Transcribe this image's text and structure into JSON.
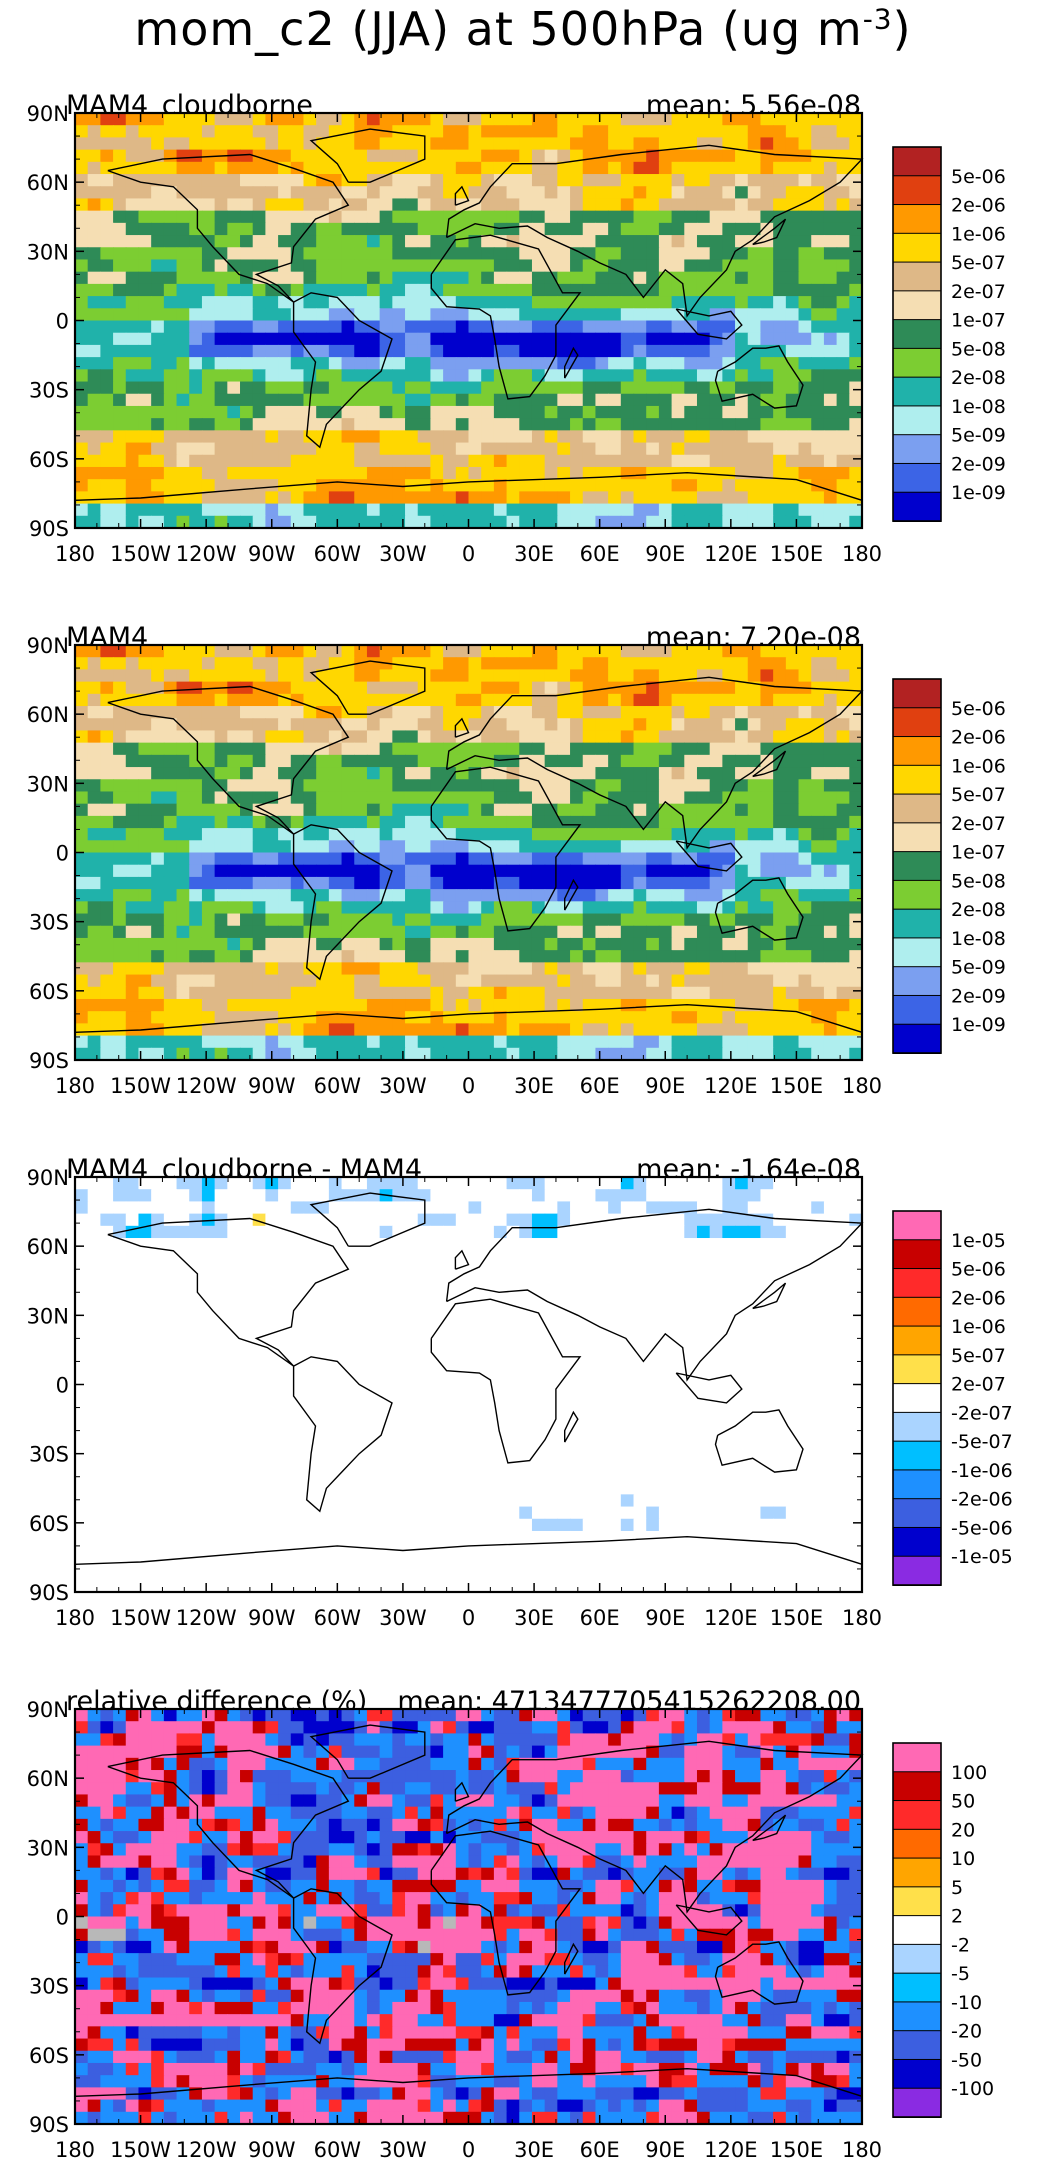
{
  "figure": {
    "title": "mom_c2 (JJA) at 500hPa (ug m",
    "title_exponent": "-3",
    "title_close": ")"
  },
  "chart_data": [
    {
      "type": "heatmap",
      "title": "MAM4_cloudborne",
      "mean_label": "mean: 5.56e-08",
      "mean": 5.56e-08,
      "xlim": [
        -180,
        180
      ],
      "ylim": [
        -90,
        90
      ],
      "x_ticks": [
        "180",
        "150W",
        "120W",
        "90W",
        "60W",
        "30W",
        "0",
        "30E",
        "60E",
        "90E",
        "120E",
        "150E",
        "180"
      ],
      "y_ticks": [
        "90N",
        "60N",
        "30N",
        "0",
        "30S",
        "60S",
        "90S"
      ],
      "colorbar": {
        "labels": [
          "5e-06",
          "2e-06",
          "1e-06",
          "5e-07",
          "2e-07",
          "1e-07",
          "5e-08",
          "2e-08",
          "1e-08",
          "5e-09",
          "2e-09",
          "1e-09"
        ],
        "colors": [
          "#b22222",
          "#e04010",
          "#ff9900",
          "#ffd700",
          "#deb887",
          "#f5deb3",
          "#2e8b57",
          "#7ccd32",
          "#20b2aa",
          "#afeeee",
          "#7b9ff0",
          "#3c64e6",
          "#0000cd"
        ]
      }
    },
    {
      "type": "heatmap",
      "title": "MAM4",
      "mean_label": "mean: 7.20e-08",
      "mean": 7.2e-08,
      "xlim": [
        -180,
        180
      ],
      "ylim": [
        -90,
        90
      ],
      "x_ticks": [
        "180",
        "150W",
        "120W",
        "90W",
        "60W",
        "30W",
        "0",
        "30E",
        "60E",
        "90E",
        "120E",
        "150E",
        "180"
      ],
      "y_ticks": [
        "90N",
        "60N",
        "30N",
        "0",
        "30S",
        "60S",
        "90S"
      ],
      "colorbar": {
        "labels": [
          "5e-06",
          "2e-06",
          "1e-06",
          "5e-07",
          "2e-07",
          "1e-07",
          "5e-08",
          "2e-08",
          "1e-08",
          "5e-09",
          "2e-09",
          "1e-09"
        ],
        "colors": [
          "#b22222",
          "#e04010",
          "#ff9900",
          "#ffd700",
          "#deb887",
          "#f5deb3",
          "#2e8b57",
          "#7ccd32",
          "#20b2aa",
          "#afeeee",
          "#7b9ff0",
          "#3c64e6",
          "#0000cd"
        ]
      }
    },
    {
      "type": "heatmap",
      "title": "MAM4_cloudborne - MAM4",
      "mean_label": "mean: -1.64e-08",
      "mean": -1.64e-08,
      "xlim": [
        -180,
        180
      ],
      "ylim": [
        -90,
        90
      ],
      "x_ticks": [
        "180",
        "150W",
        "120W",
        "90W",
        "60W",
        "30W",
        "0",
        "30E",
        "60E",
        "90E",
        "120E",
        "150E",
        "180"
      ],
      "y_ticks": [
        "90N",
        "60N",
        "30N",
        "0",
        "30S",
        "60S",
        "90S"
      ],
      "colorbar": {
        "labels": [
          "1e-05",
          "5e-06",
          "2e-06",
          "1e-06",
          "5e-07",
          "2e-07",
          "-2e-07",
          "-5e-07",
          "-1e-06",
          "-2e-06",
          "-5e-06",
          "-1e-05"
        ],
        "colors": [
          "#ff69b4",
          "#c80000",
          "#ff2a2a",
          "#ff6a00",
          "#ffa500",
          "#ffe04a",
          "#ffffff",
          "#aad4ff",
          "#00bfff",
          "#1e90ff",
          "#3c5fe0",
          "#0000cd",
          "#8a2be2"
        ]
      }
    },
    {
      "type": "heatmap",
      "title": "relative difference (%)",
      "mean_label": "mean: 4713477705415262208.00",
      "mean": 4.713477705415262e+18,
      "xlim": [
        -180,
        180
      ],
      "ylim": [
        -90,
        90
      ],
      "x_ticks": [
        "180",
        "150W",
        "120W",
        "90W",
        "60W",
        "30W",
        "0",
        "30E",
        "60E",
        "90E",
        "120E",
        "150E",
        "180"
      ],
      "y_ticks": [
        "90N",
        "60N",
        "30N",
        "0",
        "30S",
        "60S",
        "90S"
      ],
      "colorbar": {
        "labels": [
          "100",
          "50",
          "20",
          "10",
          "5",
          "2",
          "-2",
          "-5",
          "-10",
          "-20",
          "-50",
          "-100"
        ],
        "colors": [
          "#ff69b4",
          "#c80000",
          "#ff2a2a",
          "#ff6a00",
          "#ffa500",
          "#ffe04a",
          "#ffffff",
          "#aad4ff",
          "#00bfff",
          "#1e90ff",
          "#3c5fe0",
          "#0000cd",
          "#8a2be2"
        ]
      }
    }
  ]
}
